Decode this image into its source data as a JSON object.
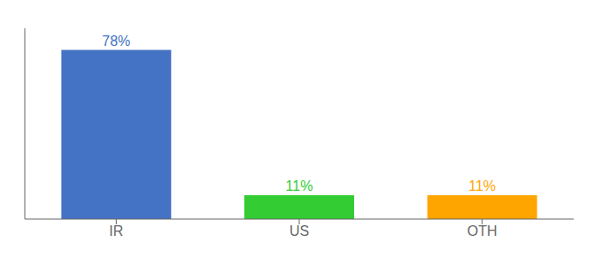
{
  "chart_data": {
    "type": "bar",
    "categories": [
      "IR",
      "US",
      "OTH"
    ],
    "values": [
      78,
      11,
      11
    ],
    "value_labels": [
      "78%",
      "11%",
      "11%"
    ],
    "colors": [
      "#4472C4",
      "#33CC33",
      "#FFA500"
    ],
    "ylim": [
      0,
      88
    ],
    "tick_labels": "x",
    "data_labels": true
  }
}
